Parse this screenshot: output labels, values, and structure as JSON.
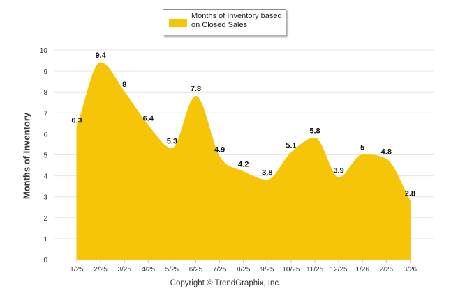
{
  "chart_data": {
    "type": "area",
    "title": "",
    "legend": {
      "label": "Months of Inventory based on Closed Sales",
      "position": "top-center"
    },
    "categories": [
      "1/25",
      "2/25",
      "3/25",
      "4/25",
      "5/25",
      "6/25",
      "7/25",
      "8/25",
      "9/25",
      "10/25",
      "11/25",
      "12/25",
      "1/26",
      "2/26",
      "3/26"
    ],
    "series": [
      {
        "name": "Months of Inventory based on Closed Sales",
        "values": [
          6.3,
          9.4,
          8,
          6.4,
          5.3,
          7.8,
          4.9,
          4.2,
          3.8,
          5.1,
          5.8,
          3.9,
          5,
          4.8,
          2.8
        ],
        "color": "#f7c508"
      }
    ],
    "ylabel": "Months of Inventory",
    "xlabel": "",
    "ylim": [
      0,
      10
    ],
    "yticks": [
      0,
      1,
      2,
      3,
      4,
      5,
      6,
      7,
      8,
      9,
      10
    ],
    "grid": true
  },
  "footer": {
    "copyright": "Copyright © TrendGraphix, Inc."
  }
}
